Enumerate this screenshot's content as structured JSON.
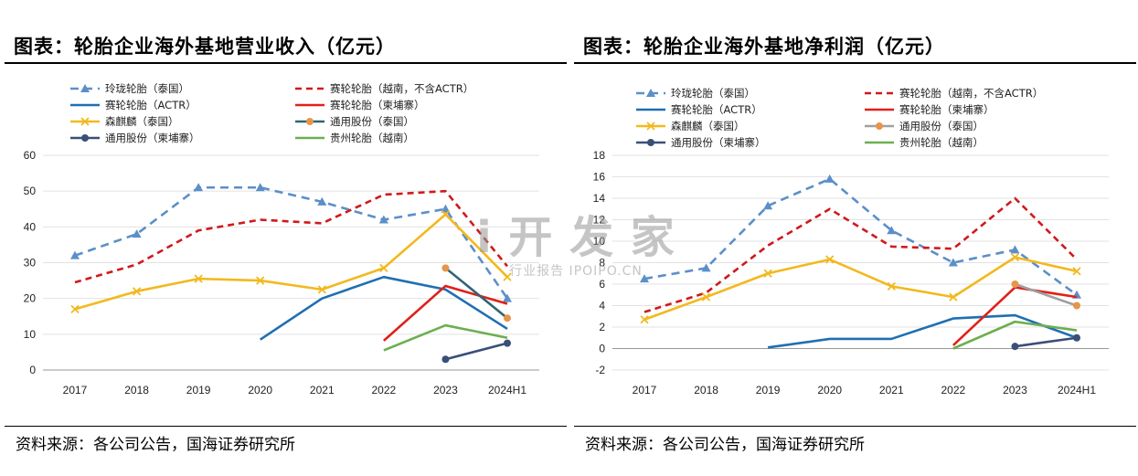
{
  "left": {
    "title": "图表：轮胎企业海外基地营业收入（亿元）",
    "source": "资料来源：各公司公告，国海证券研究所"
  },
  "right": {
    "title": "图表：轮胎企业海外基地净利润（亿元）",
    "source": "资料来源：各公司公告，国海证券研究所"
  },
  "watermark": {
    "big": "i 开 发 家",
    "small": "行业报告 IPOIPO.CN"
  },
  "chart_data": [
    {
      "type": "line",
      "title": "图表：轮胎企业海外基地营业收入（亿元）",
      "categories": [
        "2017",
        "2018",
        "2019",
        "2020",
        "2021",
        "2022",
        "2023",
        "2024H1"
      ],
      "ylim": [
        0,
        60
      ],
      "yticks": [
        0,
        10,
        20,
        30,
        40,
        50,
        60
      ],
      "legend_position": "top",
      "series": [
        {
          "name": "玲珑轮胎（泰国）",
          "values": [
            32,
            38,
            51,
            51,
            47,
            42,
            45,
            20
          ],
          "color": "#5B8FC9",
          "dash": "9,6",
          "marker": "triangle"
        },
        {
          "name": "赛轮轮胎（越南，不含ACTR）",
          "values": [
            24.5,
            29.5,
            39,
            42,
            41,
            49,
            50,
            29
          ],
          "color": "#D0191C",
          "dash": "7,5",
          "marker": "none"
        },
        {
          "name": "赛轮轮胎（ACTR）",
          "values": [
            null,
            null,
            null,
            8.5,
            20,
            26,
            22.5,
            11.5
          ],
          "color": "#1F6FB2",
          "dash": "",
          "marker": "none"
        },
        {
          "name": "赛轮轮胎（柬埔寨）",
          "values": [
            null,
            null,
            null,
            null,
            null,
            8.2,
            23.5,
            18.5
          ],
          "color": "#E0201A",
          "dash": "",
          "marker": "none"
        },
        {
          "name": "森麒麟（泰国）",
          "values": [
            17,
            22,
            25.5,
            25,
            22.5,
            28.5,
            43.5,
            26
          ],
          "color": "#F2B91E",
          "dash": "",
          "marker": "x"
        },
        {
          "name": "通用股份（泰国）",
          "values": [
            null,
            null,
            null,
            null,
            null,
            null,
            28.5,
            14.5
          ],
          "color": "#2F6475",
          "dash": "",
          "marker": "circle",
          "markerColor": "#E8944A"
        },
        {
          "name": "通用股份（柬埔寨）",
          "values": [
            null,
            null,
            null,
            null,
            null,
            null,
            3,
            7.5
          ],
          "color": "#3A4F78",
          "dash": "",
          "marker": "circle"
        },
        {
          "name": "贵州轮胎（越南）",
          "values": [
            null,
            null,
            null,
            null,
            null,
            5.5,
            12.5,
            9
          ],
          "color": "#6CAF4F",
          "dash": "",
          "marker": "none"
        }
      ]
    },
    {
      "type": "line",
      "title": "图表：轮胎企业海外基地净利润（亿元）",
      "categories": [
        "2017",
        "2018",
        "2019",
        "2020",
        "2021",
        "2022",
        "2023",
        "2024H1"
      ],
      "ylim": [
        -2,
        18
      ],
      "yticks": [
        -2,
        0,
        2,
        4,
        6,
        8,
        10,
        12,
        14,
        16,
        18
      ],
      "legend_position": "top",
      "series": [
        {
          "name": "玲珑轮胎（泰国）",
          "values": [
            6.5,
            7.5,
            13.3,
            15.8,
            11,
            8,
            9.2,
            5
          ],
          "color": "#5B8FC9",
          "dash": "9,6",
          "marker": "triangle"
        },
        {
          "name": "赛轮轮胎（越南，不含ACTR）",
          "values": [
            3.4,
            5.2,
            9.6,
            13,
            9.5,
            9.3,
            14,
            8.3
          ],
          "color": "#D0191C",
          "dash": "7,5",
          "marker": "none"
        },
        {
          "name": "赛轮轮胎（ACTR）",
          "values": [
            null,
            null,
            0.1,
            0.9,
            0.9,
            2.8,
            3.1,
            1
          ],
          "color": "#1F6FB2",
          "dash": "",
          "marker": "none"
        },
        {
          "name": "赛轮轮胎（柬埔寨）",
          "values": [
            null,
            null,
            null,
            null,
            null,
            0.3,
            5.7,
            4.8
          ],
          "color": "#E0201A",
          "dash": "",
          "marker": "none"
        },
        {
          "name": "森麒麟（泰国）",
          "values": [
            2.7,
            4.8,
            7,
            8.3,
            5.8,
            4.8,
            8.5,
            7.2
          ],
          "color": "#F2B91E",
          "dash": "",
          "marker": "x"
        },
        {
          "name": "通用股份（泰国）",
          "values": [
            null,
            null,
            null,
            null,
            null,
            null,
            6,
            4
          ],
          "color": "#A0A0A0",
          "dash": "",
          "marker": "circle",
          "markerColor": "#E8944A"
        },
        {
          "name": "通用股份（柬埔寨）",
          "values": [
            null,
            null,
            null,
            null,
            null,
            null,
            0.2,
            1
          ],
          "color": "#3A4F78",
          "dash": "",
          "marker": "circle"
        },
        {
          "name": "贵州轮胎（越南）",
          "values": [
            null,
            null,
            null,
            null,
            null,
            0,
            2.5,
            1.7
          ],
          "color": "#6CAF4F",
          "dash": "",
          "marker": "none"
        }
      ]
    }
  ]
}
